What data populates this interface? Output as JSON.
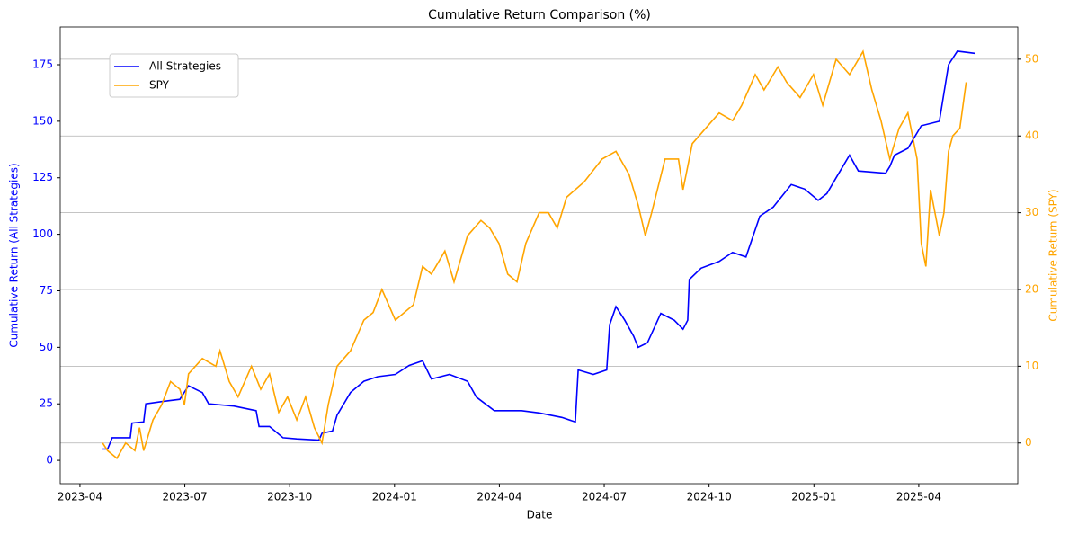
{
  "chart_data": {
    "type": "line",
    "title": "Cumulative Return Comparison (%)",
    "x_label": "Date",
    "y_label": "Cumulative Return (All Strategies)",
    "y2_label": "Cumulative Return (SPY)",
    "xlim": [
      2023.203,
      2025.486
    ],
    "xticks": [
      {
        "value": 2023.25,
        "label": "2023-04"
      },
      {
        "value": 2023.5,
        "label": "2023-07"
      },
      {
        "value": 2023.75,
        "label": "2023-10"
      },
      {
        "value": 2024.0,
        "label": "2024-01"
      },
      {
        "value": 2024.25,
        "label": "2024-04"
      },
      {
        "value": 2024.5,
        "label": "2024-07"
      },
      {
        "value": 2024.75,
        "label": "2024-10"
      },
      {
        "value": 2025.0,
        "label": "2025-01"
      },
      {
        "value": 2025.25,
        "label": "2025-04"
      }
    ],
    "ylim": [
      -10.3,
      191.7
    ],
    "yticks": [
      0,
      25,
      50,
      75,
      100,
      125,
      150,
      175
    ],
    "y2lim": [
      -5.3,
      54.2
    ],
    "y2ticks": [
      0,
      10,
      20,
      30,
      40,
      50
    ],
    "grid_axis": "y2",
    "legend": "upper left",
    "series": [
      {
        "name": "All Strategies",
        "color": "#0000ff",
        "x": [
          2023.304,
          2023.316,
          2023.327,
          2023.37,
          2023.374,
          2023.402,
          2023.407,
          2023.445,
          2023.488,
          2023.509,
          2023.542,
          2023.557,
          2023.617,
          2023.67,
          2023.677,
          2023.702,
          2023.734,
          2023.767,
          2023.82,
          2023.827,
          2023.852,
          2023.863,
          2023.895,
          2023.927,
          2023.96,
          2024.002,
          2024.035,
          2024.067,
          2024.088,
          2024.131,
          2024.174,
          2024.195,
          2024.238,
          2024.303,
          2024.345,
          2024.399,
          2024.431,
          2024.438,
          2024.474,
          2024.506,
          2024.513,
          2024.528,
          2024.549,
          2024.57,
          2024.581,
          2024.603,
          2024.635,
          2024.667,
          2024.688,
          2024.699,
          2024.703,
          2024.731,
          2024.774,
          2024.806,
          2024.838,
          2024.871,
          2024.903,
          2024.946,
          2024.978,
          2025.01,
          2025.031,
          2025.053,
          2025.085,
          2025.106,
          2025.171,
          2025.181,
          2025.192,
          2025.224,
          2025.256,
          2025.299,
          2025.321,
          2025.342,
          2025.385
        ],
        "values": [
          5,
          5,
          10,
          10,
          16.5,
          17,
          25,
          26,
          27,
          33,
          30,
          25,
          24,
          22,
          15,
          15,
          10,
          9.5,
          9,
          12,
          13,
          20,
          30,
          35,
          37,
          38,
          42,
          44,
          36,
          38,
          35,
          28,
          22,
          22,
          21,
          19,
          17,
          40,
          38,
          40,
          60,
          68,
          62,
          55,
          50,
          52,
          65,
          62,
          58,
          62,
          80,
          85,
          88,
          92,
          90,
          108,
          112,
          122,
          120,
          115,
          118,
          125,
          135,
          128,
          127,
          130,
          135,
          138,
          148,
          150,
          175,
          181,
          180
        ]
      },
      {
        "name": "SPY",
        "color": "#ffa500",
        "axis": "y2",
        "x": [
          2023.304,
          2023.316,
          2023.338,
          2023.359,
          2023.381,
          2023.392,
          2023.402,
          2023.424,
          2023.445,
          2023.466,
          2023.488,
          2023.499,
          2023.509,
          2023.542,
          2023.574,
          2023.584,
          2023.606,
          2023.627,
          2023.659,
          2023.681,
          2023.702,
          2023.724,
          2023.745,
          2023.767,
          2023.788,
          2023.809,
          2023.827,
          2023.842,
          2023.863,
          2023.895,
          2023.927,
          2023.949,
          2023.97,
          2024.002,
          2024.045,
          2024.067,
          2024.088,
          2024.12,
          2024.142,
          2024.174,
          2024.206,
          2024.227,
          2024.249,
          2024.27,
          2024.292,
          2024.313,
          2024.345,
          2024.367,
          2024.388,
          2024.41,
          2024.452,
          2024.495,
          2024.528,
          2024.559,
          2024.581,
          2024.598,
          2024.613,
          2024.645,
          2024.677,
          2024.688,
          2024.71,
          2024.742,
          2024.774,
          2024.806,
          2024.828,
          2024.86,
          2024.881,
          2024.914,
          2024.935,
          2024.967,
          2024.999,
          2025.021,
          2025.053,
          2025.085,
          2025.117,
          2025.138,
          2025.16,
          2025.181,
          2025.203,
          2025.224,
          2025.246,
          2025.256,
          2025.267,
          2025.278,
          2025.299,
          2025.31,
          2025.321,
          2025.331,
          2025.348,
          2025.363
        ],
        "values": [
          0,
          -1,
          -2,
          0,
          -1,
          2,
          -1,
          3,
          5,
          8,
          7,
          5,
          9,
          11,
          10,
          12,
          8,
          6,
          10,
          7,
          9,
          4,
          6,
          3,
          6,
          2,
          0,
          5,
          10,
          12,
          16,
          17,
          20,
          16,
          18,
          23,
          22,
          25,
          21,
          27,
          29,
          28,
          26,
          22,
          21,
          26,
          30,
          30,
          28,
          32,
          34,
          37,
          38,
          35,
          31,
          27,
          30,
          37,
          37,
          33,
          39,
          41,
          43,
          42,
          44,
          48,
          46,
          49,
          47,
          45,
          48,
          44,
          50,
          48,
          51,
          46,
          42,
          37,
          41,
          43,
          37,
          26,
          23,
          33,
          27,
          30,
          38,
          40,
          41,
          47
        ]
      }
    ]
  }
}
